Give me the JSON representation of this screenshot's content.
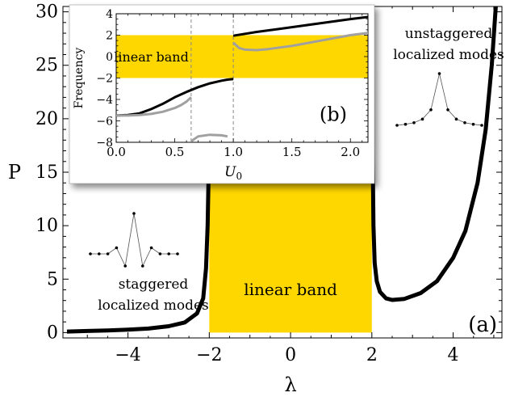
{
  "chart_data": [
    {
      "type": "line",
      "panel_label": "(a)",
      "xlabel": "λ",
      "ylabel": "P",
      "xlim": [
        -5.6,
        5.2
      ],
      "ylim": [
        -0.5,
        30.5
      ],
      "xticks": [
        -4,
        -2,
        0,
        2,
        4
      ],
      "xtick_labels": [
        "−4",
        "−2",
        "0",
        "2",
        "4"
      ],
      "yticks": [
        0,
        5,
        10,
        15,
        20,
        25,
        30
      ],
      "ytick_labels": [
        "0",
        "5",
        "10",
        "15",
        "20",
        "25",
        "30"
      ],
      "grid": false,
      "band": {
        "x": [
          -2,
          2
        ],
        "label": "linear band",
        "color": "#FFD700"
      },
      "annotations": [
        {
          "text_lines": [
            "staggered",
            "localized modes"
          ]
        },
        {
          "text_lines": [
            "unstaggered",
            "localized modes"
          ]
        }
      ],
      "series": [
        {
          "color": "#000000",
          "x": [
            -5.5,
            -5.0,
            -4.5,
            -4.0,
            -3.5,
            -3.0,
            -2.6,
            -2.3,
            -2.15,
            -2.08,
            -2.04,
            -2.02,
            -2.01
          ],
          "y": [
            0.1,
            0.15,
            0.2,
            0.28,
            0.38,
            0.6,
            0.95,
            1.8,
            3.2,
            6.0,
            10.0,
            14.0,
            30.5
          ]
        },
        {
          "color": "#000000",
          "x": [
            2.01,
            2.02,
            2.04,
            2.07,
            2.12,
            2.2,
            2.35,
            2.5,
            2.8,
            3.2,
            3.6,
            4.0,
            4.3,
            4.6,
            4.8,
            4.95,
            5.05
          ],
          "y": [
            30.5,
            17.0,
            10.0,
            6.5,
            4.8,
            3.8,
            3.2,
            3.05,
            3.15,
            3.7,
            4.8,
            7.0,
            9.5,
            14.0,
            19.0,
            25.0,
            30.5
          ]
        }
      ],
      "mode_profiles": [
        {
          "name": "staggered",
          "values": [
            0,
            0,
            0,
            0.15,
            -0.3,
            1.0,
            -0.3,
            0.15,
            0,
            0,
            0
          ]
        },
        {
          "name": "unstaggered",
          "values": [
            0,
            0.02,
            0.05,
            0.12,
            0.3,
            1.0,
            0.3,
            0.12,
            0.05,
            0.02,
            0
          ]
        }
      ]
    },
    {
      "type": "line",
      "panel_label": "(b)",
      "xlabel": "U",
      "xlabel_sub": "0",
      "ylabel": "Frequency",
      "xlim": [
        0,
        2.15
      ],
      "ylim": [
        -8,
        4
      ],
      "xticks": [
        0.0,
        0.5,
        1.0,
        1.5,
        2.0
      ],
      "xtick_labels": [
        "0.0",
        "0.5",
        "1.0",
        "1.5",
        "2.0"
      ],
      "yticks": [
        4,
        2,
        0,
        -2,
        -4,
        -6,
        -8
      ],
      "ytick_labels": [
        "4",
        "2",
        "0",
        "−2",
        "−4",
        "−6",
        "−8"
      ],
      "grid": false,
      "band": {
        "y": [
          -2,
          2
        ],
        "label": "linear band",
        "color": "#FFD700"
      },
      "dashed_lines_x": [
        0.64,
        1.0
      ],
      "series": [
        {
          "color": "#000000",
          "x": [
            0,
            0.1,
            0.2,
            0.3,
            0.4,
            0.5,
            0.6,
            0.7,
            0.8,
            0.9,
            0.95,
            1.0
          ],
          "y": [
            -5.5,
            -5.45,
            -5.3,
            -4.9,
            -4.4,
            -3.8,
            -3.3,
            -2.85,
            -2.5,
            -2.25,
            -2.15,
            -2.1
          ]
        },
        {
          "color": "#000000",
          "x": [
            1.0,
            1.2,
            1.4,
            1.6,
            1.8,
            2.0,
            2.15
          ],
          "y": [
            1.95,
            2.3,
            2.6,
            2.9,
            3.2,
            3.5,
            3.7
          ]
        },
        {
          "color": "#a0a0a0",
          "x": [
            0,
            0.1,
            0.2,
            0.3,
            0.4,
            0.5,
            0.55,
            0.6,
            0.64
          ],
          "y": [
            -5.5,
            -5.5,
            -5.45,
            -5.35,
            -5.15,
            -4.8,
            -4.55,
            -4.2,
            -3.8
          ]
        },
        {
          "color": "#a0a0a0",
          "x": [
            0.64,
            0.7,
            0.8,
            0.9,
            0.95
          ],
          "y": [
            -7.9,
            -7.45,
            -7.3,
            -7.35,
            -7.45
          ]
        },
        {
          "color": "#a0a0a0",
          "x": [
            1.0,
            1.05,
            1.1,
            1.2,
            1.3,
            1.4,
            1.5,
            1.6,
            1.8,
            2.0,
            2.15
          ],
          "y": [
            1.3,
            0.8,
            0.65,
            0.6,
            0.7,
            0.85,
            1.0,
            1.2,
            1.6,
            2.0,
            2.2
          ]
        }
      ]
    }
  ]
}
